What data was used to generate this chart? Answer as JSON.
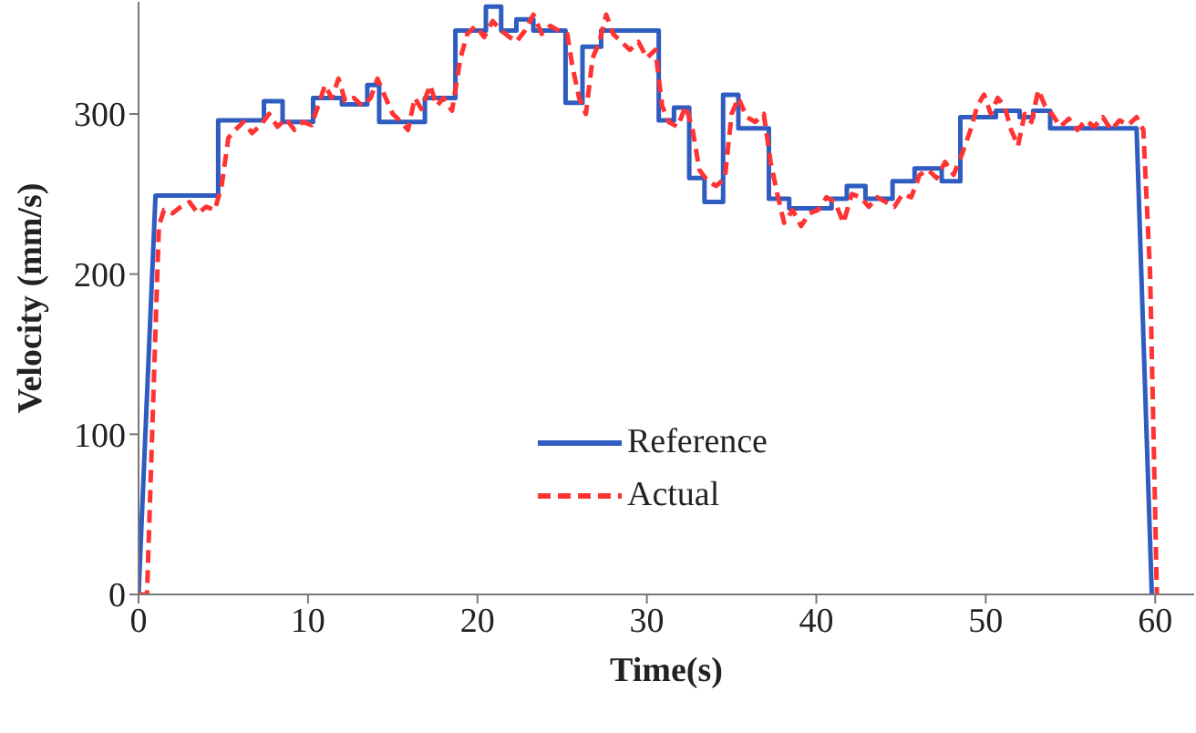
{
  "chart_data": {
    "type": "line",
    "xlabel": "Time(s)",
    "ylabel": "Velocity (mm/s)",
    "xlim": [
      0,
      62.3
    ],
    "xticks": [
      0,
      10,
      20,
      30,
      40,
      50,
      60
    ],
    "ylim": [
      0,
      370
    ],
    "yticks": [
      0,
      100,
      200,
      300
    ],
    "legend": "bottom",
    "series": [
      {
        "name": "Reference",
        "color": "#2f5cc0",
        "line_style": "solid",
        "x": [
          0,
          1,
          4.7,
          4.7,
          7.4,
          7.4,
          8.5,
          8.5,
          10.3,
          10.3,
          12,
          12,
          13.5,
          13.5,
          14.2,
          14.2,
          16.9,
          16.9,
          18.7,
          18.7,
          20.5,
          20.5,
          21.4,
          21.4,
          22.3,
          22.3,
          23.3,
          23.3,
          25.2,
          25.2,
          26.2,
          26.2,
          27.3,
          27.3,
          30.7,
          30.7,
          31.6,
          31.6,
          32.5,
          32.5,
          33.4,
          33.4,
          34.5,
          34.5,
          35.4,
          35.4,
          37.2,
          37.2,
          38.4,
          38.4,
          40.9,
          40.9,
          41.8,
          41.8,
          42.9,
          42.9,
          44.5,
          44.5,
          45.8,
          45.8,
          47.4,
          47.4,
          48.5,
          48.5,
          50.6,
          50.6,
          52,
          52,
          52.8,
          52.8,
          53.8,
          53.8,
          58.9,
          59.8
        ],
        "values": [
          0,
          249,
          249,
          296,
          296,
          308,
          308,
          295,
          295,
          310,
          310,
          306,
          306,
          318,
          318,
          295,
          295,
          310,
          310,
          352,
          352,
          367,
          367,
          352,
          352,
          359,
          359,
          352,
          352,
          307,
          307,
          342,
          342,
          352,
          352,
          296,
          296,
          304,
          304,
          260,
          260,
          245,
          245,
          312,
          312,
          291,
          291,
          247,
          247,
          241,
          241,
          247,
          247,
          255,
          255,
          247,
          247,
          258,
          258,
          266,
          266,
          258,
          258,
          298,
          298,
          302,
          302,
          298,
          298,
          302,
          302,
          291,
          291,
          0
        ]
      },
      {
        "name": "Actual",
        "color": "#ff3333",
        "line_style": "dashed",
        "x": [
          0,
          0.5,
          0.8,
          1.2,
          1.5,
          2,
          2.5,
          3,
          3.5,
          4,
          4.5,
          4.9,
          5.3,
          5.7,
          6.2,
          6.7,
          7.2,
          7.7,
          8.2,
          8.7,
          9.2,
          9.7,
          10.2,
          10.6,
          11,
          11.4,
          11.8,
          12.2,
          12.7,
          13.2,
          13.7,
          14.1,
          14.5,
          15,
          15.5,
          15.9,
          16.3,
          16.7,
          17.2,
          17.6,
          18,
          18.5,
          19,
          19.4,
          19.9,
          20.4,
          20.9,
          21.4,
          21.9,
          22.3,
          22.8,
          23.3,
          23.8,
          24.3,
          24.8,
          25.3,
          25.6,
          26,
          26.4,
          26.8,
          27.2,
          27.6,
          28,
          28.5,
          29,
          29.5,
          30,
          30.5,
          30.9,
          31.3,
          31.8,
          32.3,
          32.7,
          33.1,
          33.6,
          34.1,
          34.6,
          35,
          35.4,
          35.9,
          36.4,
          36.9,
          37.3,
          37.7,
          38.1,
          38.6,
          39.1,
          39.6,
          40.1,
          40.6,
          41.1,
          41.6,
          42.1,
          42.6,
          43.1,
          43.6,
          44.1,
          44.6,
          45.1,
          45.6,
          46.1,
          46.6,
          47.1,
          47.6,
          48.1,
          48.6,
          49.1,
          49.5,
          49.9,
          50.3,
          50.7,
          51.1,
          51.5,
          51.9,
          52.3,
          52.7,
          53.1,
          53.5,
          53.9,
          54.4,
          54.9,
          55.4,
          55.9,
          56.4,
          56.9,
          57.4,
          57.9,
          58.4,
          58.9,
          59.3,
          59.7,
          60.1
        ],
        "values": [
          0,
          0,
          100,
          230,
          240,
          238,
          242,
          245,
          238,
          242,
          240,
          255,
          285,
          290,
          295,
          288,
          293,
          300,
          292,
          297,
          290,
          295,
          293,
          305,
          318,
          310,
          322,
          308,
          310,
          305,
          310,
          322,
          312,
          300,
          295,
          290,
          310,
          303,
          318,
          305,
          310,
          302,
          335,
          350,
          355,
          348,
          358,
          352,
          348,
          345,
          352,
          362,
          350,
          355,
          352,
          350,
          330,
          310,
          300,
          335,
          345,
          362,
          350,
          345,
          340,
          345,
          335,
          340,
          305,
          295,
          292,
          305,
          290,
          265,
          258,
          255,
          260,
          300,
          310,
          298,
          295,
          300,
          270,
          250,
          232,
          240,
          230,
          238,
          240,
          248,
          245,
          232,
          250,
          248,
          242,
          248,
          245,
          242,
          250,
          248,
          262,
          265,
          260,
          270,
          262,
          275,
          290,
          305,
          312,
          300,
          310,
          305,
          290,
          280,
          300,
          295,
          315,
          305,
          300,
          292,
          297,
          290,
          296,
          292,
          298,
          290,
          296,
          293,
          298,
          290,
          200,
          0
        ]
      }
    ]
  }
}
